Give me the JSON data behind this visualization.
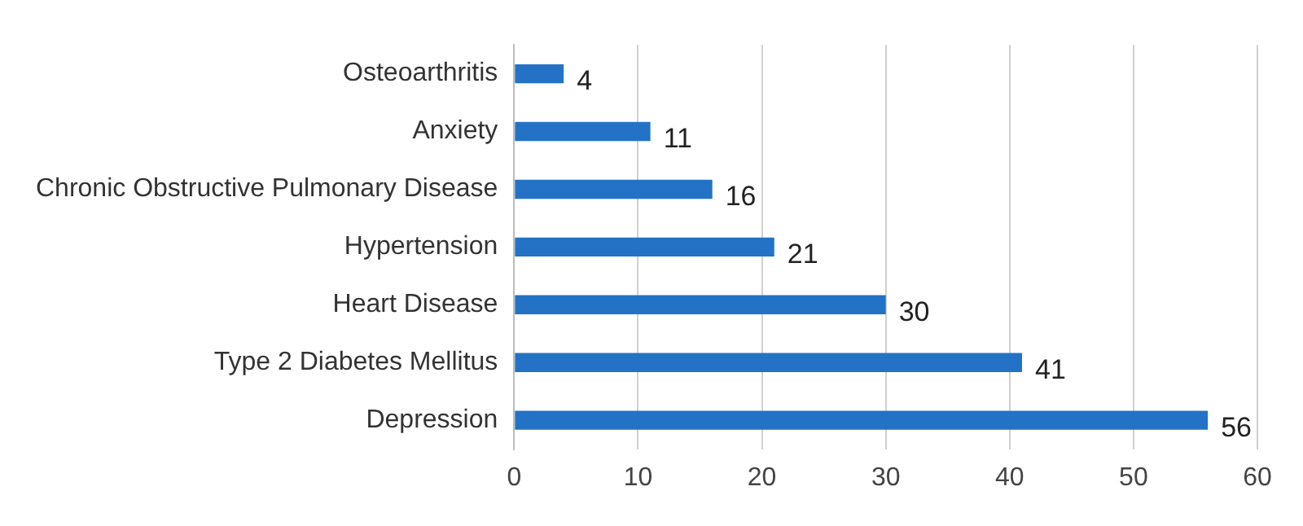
{
  "chart_data": {
    "type": "bar",
    "orientation": "horizontal",
    "categories": [
      "Osteoarthritis",
      "Anxiety",
      "Chronic Obstructive Pulmonary Disease",
      "Hypertension",
      "Heart Disease",
      "Type 2 Diabetes Mellitus",
      "Depression"
    ],
    "values": [
      4,
      11,
      16,
      21,
      30,
      41,
      56
    ],
    "color": "#2372c6",
    "xlim": [
      0,
      60
    ],
    "xticks": [
      0,
      10,
      20,
      30,
      40,
      50,
      60
    ],
    "grid": "x",
    "data_labels": true
  }
}
